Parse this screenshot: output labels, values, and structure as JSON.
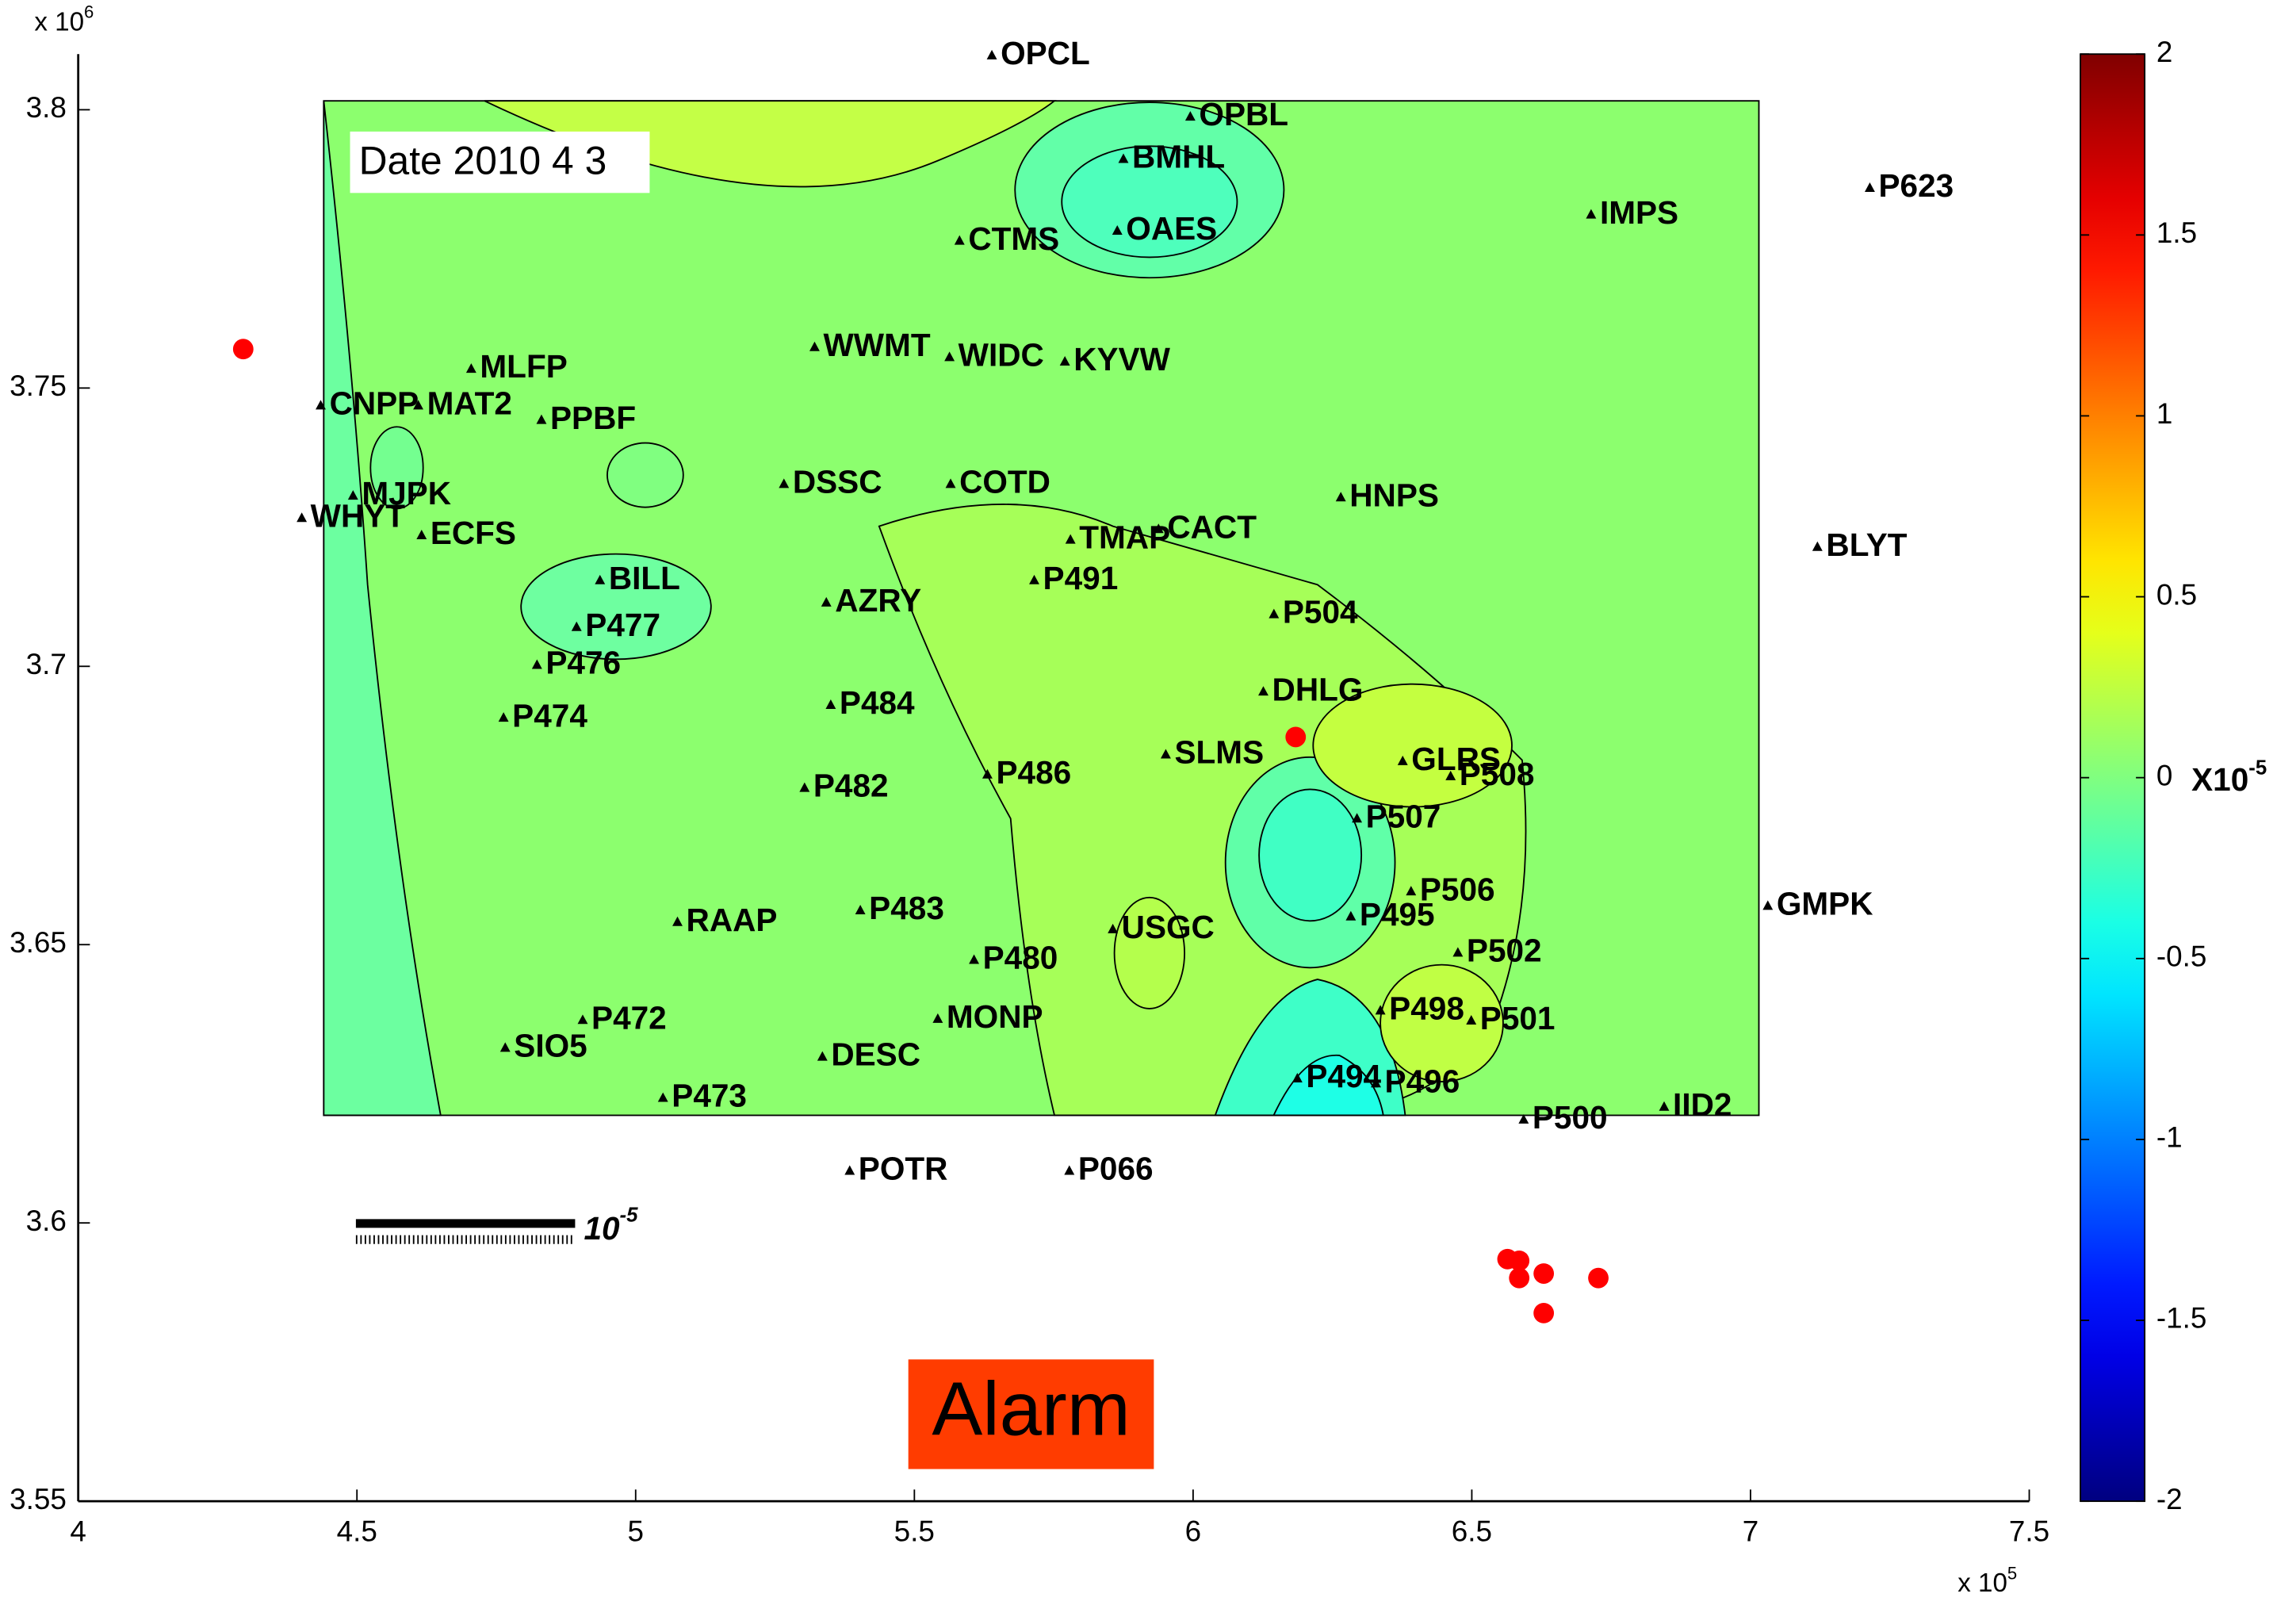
{
  "chart_data": {
    "type": "map",
    "date_label": "Date 2010 4 3",
    "alarm_label": "Alarm",
    "x_multiplier": {
      "base": "x 10",
      "exp": "5"
    },
    "y_multiplier": {
      "base": "x 10",
      "exp": "6"
    },
    "scale_label": {
      "base": "10",
      "exp": "-5"
    },
    "xlim": [
      4,
      7.5
    ],
    "ylim": [
      3.55,
      3.81
    ],
    "xticks": [
      4,
      4.5,
      5,
      5.5,
      6,
      6.5,
      7,
      7.5
    ],
    "yticks": [
      3.55,
      3.6,
      3.65,
      3.7,
      3.75,
      3.8
    ],
    "stations": {
      "color": "#000000",
      "names": [
        "OPCL",
        "OPBL",
        "BMHL",
        "OAES",
        "CTMS",
        "IMPS",
        "P623",
        "WWMT",
        "WIDC",
        "KYVW",
        "MLFP",
        "CNPP",
        "MAT2",
        "PPBF",
        "MJPK",
        "WHYT",
        "ECFS",
        "DSSC",
        "COTD",
        "HNPS",
        "CACT",
        "TMAP",
        "BLYT",
        "BILL",
        "P491",
        "AZRY",
        "P504",
        "P477",
        "P476",
        "DHLG",
        "P474",
        "P484",
        "SLMS",
        "GLRS",
        "P508",
        "P486",
        "P482",
        "P507",
        "P506",
        "GMPK",
        "P483",
        "RAAP",
        "P495",
        "USGC",
        "P502",
        "P480",
        "P498",
        "P501",
        "MONP",
        "P472",
        "SIO5",
        "DESC",
        "P494",
        "P496",
        "P473",
        "P500",
        "IID2",
        "POTR",
        "P066"
      ],
      "x": [
        5.639,
        5.995,
        5.875,
        5.864,
        5.581,
        6.714,
        7.214,
        5.321,
        5.563,
        5.77,
        4.705,
        4.435,
        4.61,
        4.831,
        4.493,
        4.401,
        4.616,
        5.266,
        5.565,
        6.265,
        5.938,
        5.78,
        7.12,
        4.936,
        5.715,
        5.342,
        6.145,
        4.894,
        4.823,
        6.126,
        4.763,
        5.35,
        5.951,
        6.376,
        6.462,
        5.631,
        5.303,
        6.294,
        6.391,
        7.031,
        5.403,
        5.075,
        6.283,
        5.856,
        6.475,
        5.607,
        6.336,
        6.499,
        5.542,
        4.905,
        4.766,
        5.335,
        6.187,
        6.328,
        5.049,
        6.593,
        6.845,
        5.384,
        5.778
      ],
      "y": [
        3.8097,
        3.7987,
        3.7911,
        3.7782,
        3.7764,
        3.7811,
        3.7859,
        3.7573,
        3.7555,
        3.7547,
        3.7534,
        3.7468,
        3.7468,
        3.7442,
        3.7306,
        3.7266,
        3.7235,
        3.7327,
        3.7327,
        3.7303,
        3.7246,
        3.7227,
        3.7214,
        3.7154,
        3.7154,
        3.7114,
        3.7093,
        3.707,
        3.7002,
        3.6954,
        3.6907,
        3.693,
        3.6841,
        3.6829,
        3.6802,
        3.6805,
        3.6781,
        3.6726,
        3.6595,
        3.6569,
        3.6561,
        3.654,
        3.655,
        3.6527,
        3.6485,
        3.6472,
        3.6381,
        3.6363,
        3.6366,
        3.6364,
        3.6314,
        3.6298,
        3.6259,
        3.625,
        3.6224,
        3.6185,
        3.6208,
        3.6093,
        3.6093
      ]
    },
    "events": {
      "color": "#ff0000",
      "x": [
        4.296,
        6.184,
        6.564,
        6.585,
        6.585,
        6.629,
        6.727,
        6.629
      ],
      "y": [
        3.757,
        3.6873,
        3.5935,
        3.5932,
        3.5901,
        3.5909,
        3.5901,
        3.5838
      ]
    },
    "colorbar": {
      "colormap": "jet",
      "clim": [
        -2,
        2
      ],
      "ticks": [
        2,
        1.5,
        1,
        0.5,
        0,
        -0.5,
        -1,
        -1.5,
        -2
      ],
      "label": {
        "base": "X10",
        "exp": "-5"
      }
    }
  }
}
